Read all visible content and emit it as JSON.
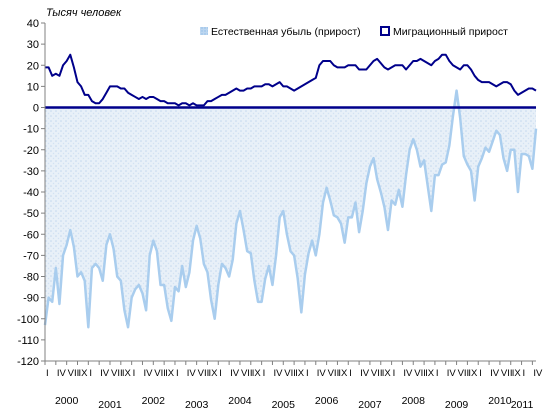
{
  "chart_data": {
    "type": "area",
    "title": "",
    "ylabel": "Тысяч человек",
    "xlabel": "",
    "ylim": [
      -120,
      40
    ],
    "yticks": [
      40,
      30,
      20,
      10,
      0,
      -10,
      -20,
      -30,
      -40,
      -50,
      -60,
      -70,
      -80,
      -90,
      -100,
      -110,
      -120
    ],
    "legend_position": "top-right",
    "grid": false,
    "colors": {
      "natural": "#a9cdee",
      "natural_fill": "#e6eef8",
      "migration": "#00008b",
      "zero_line": "#00008b"
    },
    "years": [
      "2000",
      "2001",
      "2002",
      "2003",
      "2004",
      "2005",
      "2006",
      "2007",
      "2008",
      "2009",
      "2010",
      "2011"
    ],
    "quarter_labels": [
      "I",
      "IV",
      "VII",
      "IX"
    ],
    "last_quarter_labels": [
      "I",
      "IV"
    ],
    "start_month": "2000-01",
    "series": [
      {
        "name": "Естественная убыль (прирост)",
        "values": [
          -103,
          -90,
          -92,
          -76,
          -93,
          -70,
          -65,
          -58,
          -66,
          -80,
          -78,
          -82,
          -104,
          -76,
          -74,
          -76,
          -82,
          -65,
          -60,
          -67,
          -80,
          -82,
          -96,
          -104,
          -90,
          -86,
          -84,
          -88,
          -96,
          -70,
          -63,
          -68,
          -84,
          -84,
          -95,
          -101,
          -85,
          -87,
          -75,
          -85,
          -78,
          -63,
          -56,
          -62,
          -74,
          -78,
          -91,
          -100,
          -84,
          -74,
          -76,
          -80,
          -72,
          -55,
          -49,
          -58,
          -68,
          -69,
          -82,
          -92,
          -92,
          -81,
          -75,
          -84,
          -70,
          -52,
          -49,
          -60,
          -68,
          -70,
          -81,
          -97,
          -79,
          -69,
          -63,
          -70,
          -60,
          -45,
          -38,
          -44,
          -51,
          -52,
          -55,
          -64,
          -52,
          -52,
          -45,
          -59,
          -49,
          -36,
          -28,
          -24,
          -34,
          -40,
          -47,
          -58,
          -44,
          -46,
          -39,
          -47,
          -32,
          -20,
          -15,
          -20,
          -28,
          -25,
          -37,
          -49,
          -32,
          -32,
          -27,
          -26,
          -18,
          -4,
          8,
          -5,
          -23,
          -27,
          -30,
          -44,
          -28,
          -24,
          -19,
          -21,
          -16,
          -11,
          -13,
          -24,
          -30,
          -20,
          -20,
          -40,
          -22,
          -22,
          -23,
          -29,
          -10
        ]
      },
      {
        "name": "Миграционный прирост",
        "values": [
          19,
          19,
          15,
          16,
          15,
          20,
          22,
          25,
          19,
          12,
          10,
          6,
          6,
          3,
          2,
          2,
          4,
          7,
          10,
          10,
          10,
          9,
          9,
          7,
          6,
          5,
          4,
          5,
          4,
          5,
          5,
          4,
          3,
          3,
          2,
          2,
          2,
          1,
          2,
          2,
          1,
          2,
          1,
          1,
          1,
          3,
          3,
          4,
          5,
          6,
          6,
          7,
          8,
          9,
          8,
          8,
          9,
          9,
          10,
          10,
          10,
          11,
          11,
          10,
          11,
          12,
          10,
          10,
          9,
          8,
          9,
          10,
          11,
          12,
          13,
          14,
          20,
          22,
          22,
          22,
          20,
          19,
          19,
          19,
          20,
          20,
          20,
          18,
          18,
          18,
          20,
          22,
          23,
          21,
          19,
          18,
          19,
          20,
          20,
          20,
          18,
          20,
          22,
          22,
          23,
          22,
          21,
          20,
          22,
          23,
          25,
          25,
          22,
          20,
          19,
          18,
          20,
          20,
          18,
          15,
          13,
          12,
          12,
          12,
          11,
          10,
          11,
          12,
          12,
          11,
          8,
          6,
          7,
          8,
          9,
          9,
          8
        ]
      }
    ]
  }
}
